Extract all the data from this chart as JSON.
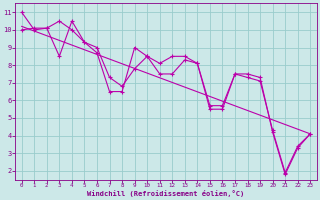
{
  "bg_color": "#cce8e8",
  "line_color": "#bb00aa",
  "grid_color": "#99cccc",
  "xlabel": "Windchill (Refroidissement éolien,°C)",
  "xlabel_color": "#880088",
  "tick_color": "#880088",
  "spine_color": "#880088",
  "ylim": [
    1.5,
    11.5
  ],
  "xlim": [
    -0.5,
    23.5
  ],
  "yticks": [
    2,
    3,
    4,
    5,
    6,
    7,
    8,
    9,
    10,
    11
  ],
  "xticks": [
    0,
    1,
    2,
    3,
    4,
    5,
    6,
    7,
    8,
    9,
    10,
    11,
    12,
    13,
    14,
    15,
    16,
    17,
    18,
    19,
    20,
    21,
    22,
    23
  ],
  "line1_x": [
    0,
    1,
    2,
    3,
    4,
    5,
    6,
    7,
    8,
    9,
    10,
    11,
    12,
    13,
    14,
    15,
    16,
    17,
    18,
    19,
    20,
    21,
    22,
    23
  ],
  "line1_y": [
    11,
    10,
    10.1,
    10.5,
    10,
    9.3,
    8.7,
    6.5,
    6.5,
    9.0,
    8.5,
    8.1,
    8.5,
    8.5,
    8.1,
    5.5,
    5.5,
    7.5,
    7.5,
    7.3,
    4.2,
    1.8,
    3.3,
    4.1
  ],
  "line2_x": [
    0,
    1,
    2,
    3,
    4,
    5,
    6,
    7,
    8,
    9,
    10,
    11,
    12,
    13,
    14,
    15,
    16,
    17,
    18,
    19,
    20,
    21,
    22,
    23
  ],
  "line2_y": [
    10,
    10.1,
    10.1,
    8.5,
    10.5,
    9.3,
    9.0,
    7.3,
    6.8,
    7.8,
    8.5,
    7.5,
    7.5,
    8.3,
    8.1,
    5.7,
    5.7,
    7.5,
    7.3,
    7.1,
    4.3,
    1.9,
    3.4,
    4.1
  ],
  "line3_x": [
    0,
    23
  ],
  "line3_y": [
    10.2,
    4.1
  ],
  "marker": "+",
  "markersize": 3.5,
  "markeredgewidth": 0.8,
  "linewidth": 0.8
}
